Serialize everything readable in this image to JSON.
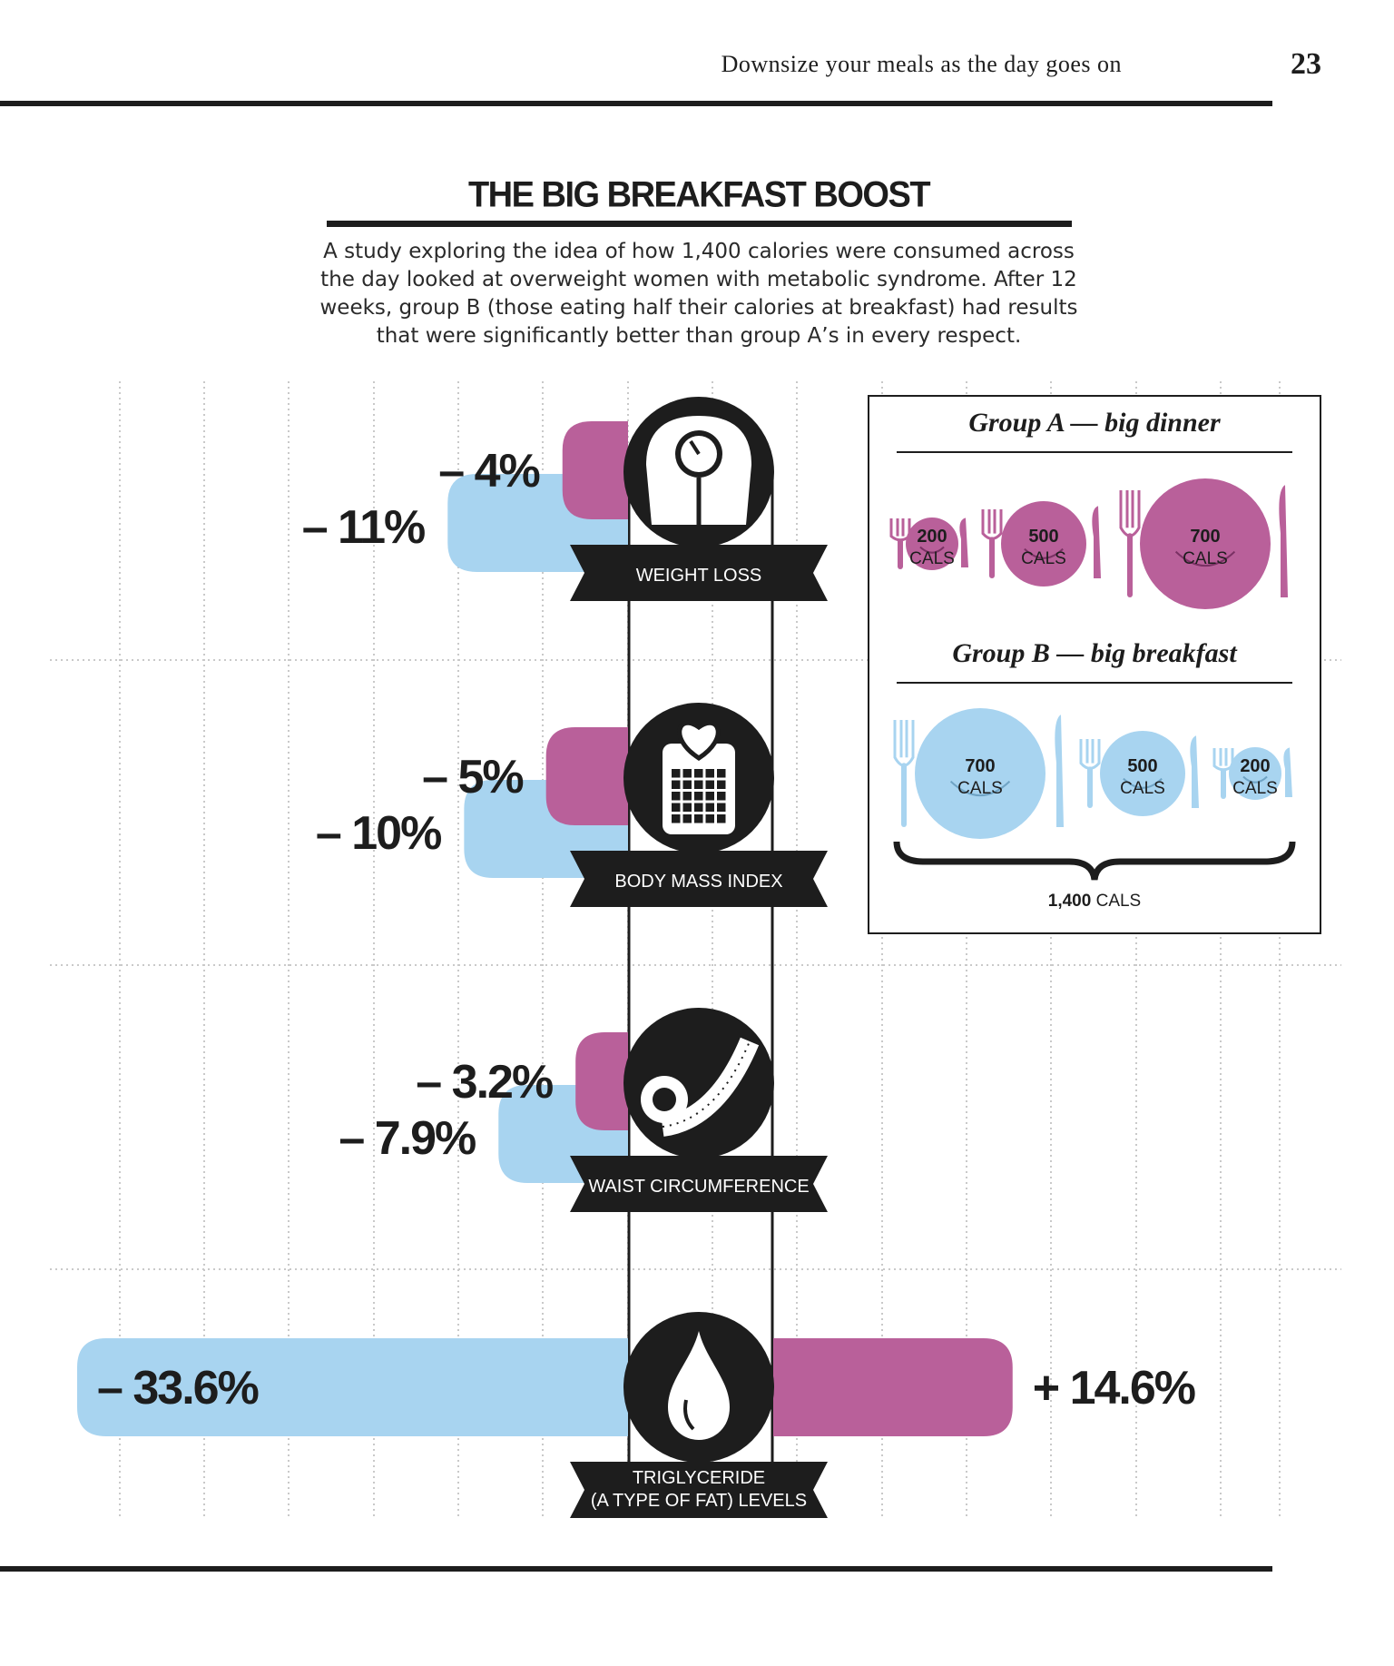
{
  "page": {
    "running_head": "Downsize your meals as the day goes on",
    "page_number": "23"
  },
  "title": "THE BIG BREAKFAST BOOST",
  "intro": "A study exploring the idea of how 1,400 calories were consumed across the day looked at overweight women with metabolic syndrome. After 12 weeks, group B (those eating half their calories at breakfast) had results that were significantly better than group A’s in every respect.",
  "colors": {
    "group_a": "#b9609a",
    "group_b": "#a8d4f0",
    "dark": "#1d1d1d",
    "grid": "#c9c9c9"
  },
  "chart_data": {
    "type": "bar",
    "categories": [
      "WEIGHT LOSS",
      "BODY MASS INDEX",
      "WAIST CIRCUMFERENCE",
      "TRIGLYCERIDE (A TYPE OF FAT) LEVELS"
    ],
    "category_lines": [
      [
        "WEIGHT LOSS"
      ],
      [
        "BODY MASS INDEX"
      ],
      [
        "WAIST CIRCUMFERENCE"
      ],
      [
        "TRIGLYCERIDE",
        "(A TYPE OF FAT) LEVELS"
      ]
    ],
    "icons": [
      "scale-icon",
      "calendar-heart-icon",
      "tape-measure-icon",
      "drop-icon"
    ],
    "series": [
      {
        "values": [
          -4,
          -5,
          -3.2,
          14.6
        ],
        "labels": [
          "– 4%",
          "– 5%",
          "– 3.2%",
          "+ 14.6%"
        ],
        "color": "#b9609a"
      },
      {
        "values": [
          -11,
          -10,
          -7.9,
          -33.6
        ],
        "labels": [
          "– 11%",
          "– 10%",
          "– 7.9%",
          "– 33.6%"
        ],
        "color": "#a8d4f0"
      }
    ],
    "unit": "%"
  },
  "legend": {
    "group_a": {
      "title": "Group A — big dinner",
      "plates": [
        {
          "number": "200",
          "unit": "CALS"
        },
        {
          "number": "500",
          "unit": "CALS"
        },
        {
          "number": "700",
          "unit": "CALS"
        }
      ]
    },
    "group_b": {
      "title": "Group B — big breakfast",
      "plates": [
        {
          "number": "700",
          "unit": "CALS"
        },
        {
          "number": "500",
          "unit": "CALS"
        },
        {
          "number": "200",
          "unit": "CALS"
        }
      ]
    },
    "total_number": "1,400",
    "total_unit": "CALS"
  }
}
